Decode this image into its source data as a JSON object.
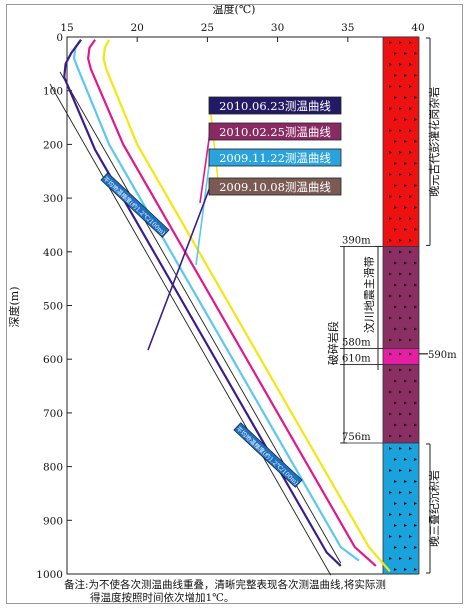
{
  "chart_data": {
    "type": "line",
    "title": "",
    "xlabel": "温度(℃)",
    "ylabel": "深度(m)",
    "xlim": [
      15,
      40
    ],
    "ylim": [
      0,
      1000
    ],
    "y_inverted": true,
    "x_axis_position": "top",
    "x_ticks": [
      "15",
      "20",
      "25",
      "30",
      "35",
      "40"
    ],
    "y_ticks": [
      "0",
      "100",
      "200",
      "300",
      "400",
      "500",
      "600",
      "700",
      "800",
      "900",
      "1000"
    ],
    "series": [
      {
        "name": "2010.06.23测温曲线",
        "color": "#f5e612",
        "x": [
          18.0,
          17.7,
          17.6,
          17.8,
          20.0,
          25.5,
          31.0,
          36.5,
          38.0
        ],
        "y": [
          5,
          20,
          40,
          60,
          200,
          450,
          700,
          950,
          995
        ]
      },
      {
        "name": "2010.02.25测温曲线",
        "color": "#e0188c",
        "x": [
          17.0,
          16.6,
          16.5,
          16.7,
          19.0,
          24.5,
          30.0,
          35.5,
          37.0
        ],
        "y": [
          5,
          20,
          40,
          60,
          200,
          450,
          700,
          950,
          985
        ]
      },
      {
        "name": "2009.11.22测温曲线",
        "color": "#5cc8f0",
        "x": [
          16.0,
          15.6,
          15.5,
          15.8,
          18.0,
          23.5,
          29.0,
          34.5,
          35.8
        ],
        "y": [
          5,
          20,
          40,
          60,
          200,
          450,
          700,
          950,
          975
        ]
      },
      {
        "name": "2009.10.08测温曲线",
        "color": "#3a1e8c",
        "x": [
          16.0,
          15.3,
          14.9,
          14.8,
          17.0,
          22.5,
          28.0,
          33.5,
          34.5
        ],
        "y": [
          5,
          30,
          50,
          75,
          210,
          460,
          710,
          960,
          985
        ]
      }
    ],
    "gradient_lines": [
      {
        "label": "平均地温梯度(约1.2℃/100m)",
        "x": [
          14.5,
          34.5
        ],
        "y": [
          65,
          980
        ]
      }
    ],
    "gradient_labels": [
      "平均地温梯度(约1.2℃/100m)",
      "平均地温梯度(约1.2℃/100m)"
    ],
    "legend_entries": [
      {
        "label": "2010.06.23测温曲线",
        "bg": "#231a66",
        "fg": "#ffffff"
      },
      {
        "label": "2010.02.25测温曲线",
        "bg": "#8a2a62",
        "fg": "#ffffff"
      },
      {
        "label": "2009.11.22测温曲线",
        "bg": "#2aa3dc",
        "fg": "#ffffff"
      },
      {
        "label": "2009.10.08测温曲线",
        "bg": "#7a5a52",
        "fg": "#ffffff"
      }
    ],
    "lithology": [
      {
        "top": 0,
        "bottom": 390,
        "color": "#ee1111",
        "label": "晚元古代彭灌花岗杂岩"
      },
      {
        "top": 390,
        "bottom": 580,
        "color": "#8a2f64",
        "label": ""
      },
      {
        "top": 580,
        "bottom": 610,
        "color": "#e51fa4",
        "label": ""
      },
      {
        "top": 610,
        "bottom": 756,
        "color": "#8a2f64",
        "label": ""
      },
      {
        "top": 756,
        "bottom": 1000,
        "color": "#1aa2dc",
        "label": "晚三叠纪沉积岩"
      }
    ],
    "depth_markers": [
      {
        "depth": 390,
        "label": "390m"
      },
      {
        "depth": 580,
        "label": "580m"
      },
      {
        "depth": 590,
        "label": "590m"
      },
      {
        "depth": 610,
        "label": "610m"
      },
      {
        "depth": 756,
        "label": "756m"
      }
    ],
    "zone_labels": [
      "汶川地震主滑带",
      "破碎岩段"
    ],
    "footnote_lines": [
      "备注:为不使各次测温曲线重叠，清晰完整表现各次测温曲线,将实际测",
      "得温度按照时间依次增加1℃。"
    ],
    "grid": false,
    "legend_position": "center"
  }
}
